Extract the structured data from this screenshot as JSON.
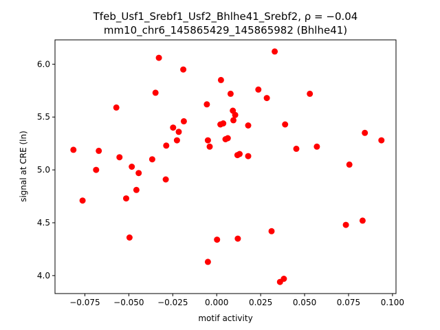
{
  "chart_data": {
    "type": "scatter",
    "title_line1": "Tfeb_Usf1_Srebf1_Usf2_Bhlhe41_Srebf2, ρ = −0.04",
    "title_line2": "mm10_chr6_145865429_145865982 (Bhlhe41)",
    "xlabel": "motif activity",
    "ylabel": "signal at CRE (ln)",
    "xlim": [
      -0.092,
      0.102
    ],
    "ylim": [
      3.83,
      6.23
    ],
    "xticks": [
      -0.075,
      -0.05,
      -0.025,
      0.0,
      0.025,
      0.05,
      0.075,
      0.1
    ],
    "xtick_labels": [
      "−0.075",
      "−0.050",
      "−0.025",
      "0.000",
      "0.025",
      "0.050",
      "0.075",
      "0.100"
    ],
    "yticks": [
      4.0,
      4.5,
      5.0,
      5.5,
      6.0
    ],
    "ytick_labels": [
      "4.0",
      "4.5",
      "5.0",
      "5.5",
      "6.0"
    ],
    "grid": false,
    "marker_color": "#ff0000",
    "points": [
      {
        "x": -0.0815,
        "y": 5.19
      },
      {
        "x": -0.0763,
        "y": 4.71
      },
      {
        "x": -0.0686,
        "y": 5.0
      },
      {
        "x": -0.0671,
        "y": 5.18
      },
      {
        "x": -0.0571,
        "y": 5.59
      },
      {
        "x": -0.0553,
        "y": 5.12
      },
      {
        "x": -0.0515,
        "y": 4.73
      },
      {
        "x": -0.0496,
        "y": 4.36
      },
      {
        "x": -0.0483,
        "y": 5.03
      },
      {
        "x": -0.0457,
        "y": 4.81
      },
      {
        "x": -0.0444,
        "y": 4.97
      },
      {
        "x": -0.0367,
        "y": 5.1
      },
      {
        "x": -0.0348,
        "y": 5.73
      },
      {
        "x": -0.0329,
        "y": 6.06
      },
      {
        "x": -0.029,
        "y": 4.91
      },
      {
        "x": -0.0287,
        "y": 5.23
      },
      {
        "x": -0.0248,
        "y": 5.4
      },
      {
        "x": -0.0226,
        "y": 5.28
      },
      {
        "x": -0.0216,
        "y": 5.36
      },
      {
        "x": -0.019,
        "y": 5.95
      },
      {
        "x": -0.0187,
        "y": 5.46
      },
      {
        "x": -0.0056,
        "y": 5.62
      },
      {
        "x": -0.005,
        "y": 5.28
      },
      {
        "x": -0.005,
        "y": 4.13
      },
      {
        "x": -0.004,
        "y": 5.22
      },
      {
        "x": 0.0002,
        "y": 4.34
      },
      {
        "x": 0.0021,
        "y": 5.43
      },
      {
        "x": 0.0024,
        "y": 5.85
      },
      {
        "x": 0.0037,
        "y": 5.44
      },
      {
        "x": 0.005,
        "y": 5.29
      },
      {
        "x": 0.0063,
        "y": 5.3
      },
      {
        "x": 0.0079,
        "y": 5.72
      },
      {
        "x": 0.0092,
        "y": 5.56
      },
      {
        "x": 0.0095,
        "y": 5.47
      },
      {
        "x": 0.0105,
        "y": 5.52
      },
      {
        "x": 0.0118,
        "y": 5.14
      },
      {
        "x": 0.012,
        "y": 4.35
      },
      {
        "x": 0.013,
        "y": 5.15
      },
      {
        "x": 0.0179,
        "y": 5.42
      },
      {
        "x": 0.0179,
        "y": 5.13
      },
      {
        "x": 0.0237,
        "y": 5.76
      },
      {
        "x": 0.0285,
        "y": 5.68
      },
      {
        "x": 0.0312,
        "y": 4.42
      },
      {
        "x": 0.033,
        "y": 6.12
      },
      {
        "x": 0.036,
        "y": 3.94
      },
      {
        "x": 0.0382,
        "y": 3.97
      },
      {
        "x": 0.0389,
        "y": 5.43
      },
      {
        "x": 0.0453,
        "y": 5.2
      },
      {
        "x": 0.053,
        "y": 5.72
      },
      {
        "x": 0.057,
        "y": 5.22
      },
      {
        "x": 0.0735,
        "y": 4.48
      },
      {
        "x": 0.0755,
        "y": 5.05
      },
      {
        "x": 0.083,
        "y": 4.52
      },
      {
        "x": 0.0843,
        "y": 5.35
      },
      {
        "x": 0.0937,
        "y": 5.28
      }
    ]
  }
}
